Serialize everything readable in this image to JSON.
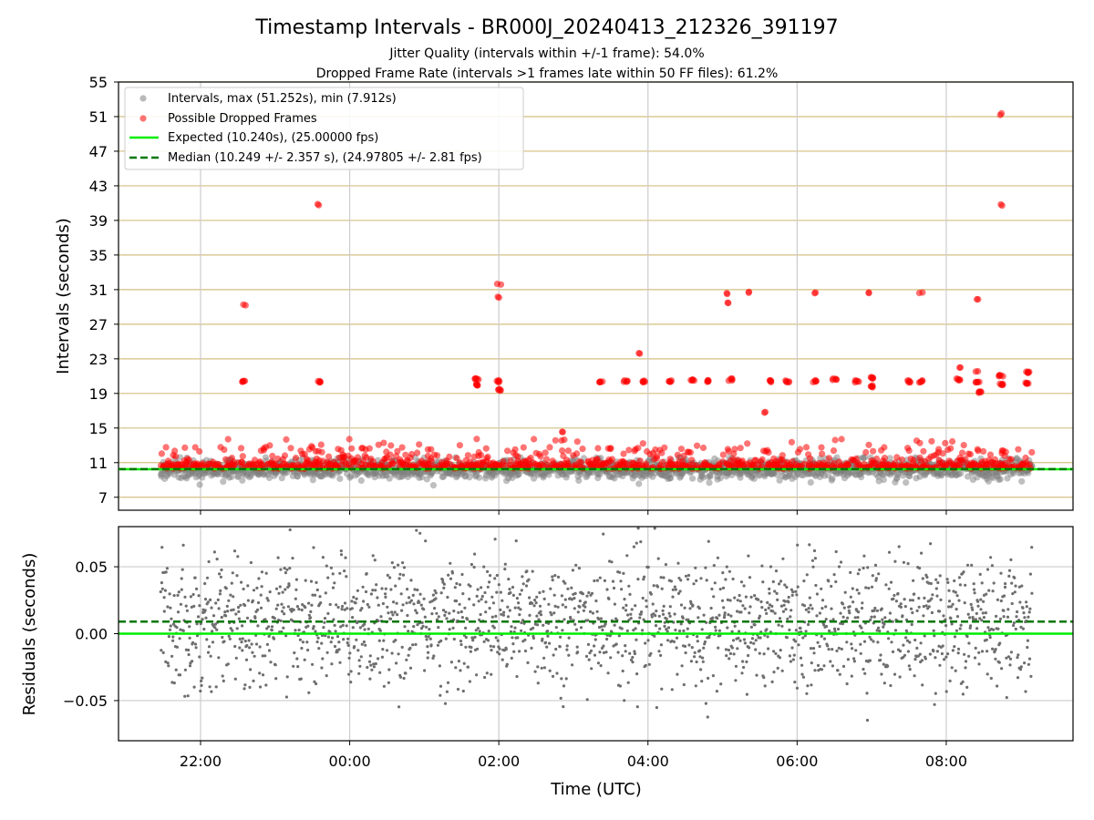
{
  "chart_data": [
    {
      "type": "scatter",
      "title": "Timestamp Intervals - BR000J_20240413_212326_391197",
      "subtitle_1": "Jitter Quality (intervals within +/-1 frame): 54.0%",
      "subtitle_2": "Dropped Frame Rate (intervals >1 frames late within 50 FF files): 61.2%",
      "ylabel": "Intervals (seconds)",
      "xlabel": "",
      "x_range": [
        "20:54",
        "09:42"
      ],
      "ylim": [
        5.5,
        55
      ],
      "y_ticks": [
        7,
        11,
        15,
        19,
        23,
        27,
        31,
        35,
        39,
        43,
        47,
        51,
        55
      ],
      "x_ticks": [
        "22:00",
        "00:00",
        "02:00",
        "04:00",
        "06:00",
        "08:00"
      ],
      "grid": "vertical lines and horizontal y-tick lines",
      "legend_position": "top-left",
      "legend": [
        "Intervals, max (51.252s), min (7.912s)",
        "Possible Dropped Frames",
        "Expected (10.240s), (25.00000 fps)",
        "Median (10.249 +/- 2.357 s), (24.97805 +/- 2.81 fps)"
      ],
      "colors": {
        "intervals": "#808080",
        "dropped": "#ff0000",
        "expected": "#00ee00",
        "median": "#007700",
        "hgrid": "#d4bf80",
        "vgrid": "#cccccc"
      },
      "expected_interval": 10.24,
      "median_interval": 10.249,
      "time_range": [
        "21:28",
        "09:09"
      ],
      "bulk_interval_range": [
        8.0,
        12.8
      ],
      "dropped_cluster_points": [
        {
          "x": "22:35",
          "y": 29.3
        },
        {
          "x": "22:35",
          "y": 20.4
        },
        {
          "x": "23:35",
          "y": 40.8
        },
        {
          "x": "23:35",
          "y": 20.3
        },
        {
          "x": "01:42",
          "y": 20.7
        },
        {
          "x": "01:42",
          "y": 20.0
        },
        {
          "x": "02:00",
          "y": 31.6
        },
        {
          "x": "02:00",
          "y": 30.1
        },
        {
          "x": "02:00",
          "y": 20.4
        },
        {
          "x": "02:00",
          "y": 19.4
        },
        {
          "x": "02:52",
          "y": 14.6
        },
        {
          "x": "03:22",
          "y": 20.4
        },
        {
          "x": "03:42",
          "y": 20.4
        },
        {
          "x": "03:54",
          "y": 23.7
        },
        {
          "x": "03:57",
          "y": 20.4
        },
        {
          "x": "04:18",
          "y": 20.4
        },
        {
          "x": "04:36",
          "y": 20.6
        },
        {
          "x": "04:48",
          "y": 20.4
        },
        {
          "x": "05:05",
          "y": 30.5
        },
        {
          "x": "05:05",
          "y": 29.5
        },
        {
          "x": "05:06",
          "y": 20.6
        },
        {
          "x": "05:22",
          "y": 30.7
        },
        {
          "x": "05:33",
          "y": 16.8
        },
        {
          "x": "05:38",
          "y": 20.4
        },
        {
          "x": "05:52",
          "y": 20.4
        },
        {
          "x": "06:14",
          "y": 30.7
        },
        {
          "x": "06:14",
          "y": 20.4
        },
        {
          "x": "06:30",
          "y": 20.6
        },
        {
          "x": "06:48",
          "y": 20.4
        },
        {
          "x": "06:58",
          "y": 30.6
        },
        {
          "x": "07:00",
          "y": 20.8
        },
        {
          "x": "07:00",
          "y": 19.8
        },
        {
          "x": "07:30",
          "y": 20.4
        },
        {
          "x": "07:40",
          "y": 30.7
        },
        {
          "x": "07:40",
          "y": 20.4
        },
        {
          "x": "08:10",
          "y": 22.0
        },
        {
          "x": "08:10",
          "y": 20.6
        },
        {
          "x": "08:25",
          "y": 29.8
        },
        {
          "x": "08:25",
          "y": 21.5
        },
        {
          "x": "08:25",
          "y": 20.4
        },
        {
          "x": "08:27",
          "y": 19.1
        },
        {
          "x": "08:44",
          "y": 51.25
        },
        {
          "x": "08:44",
          "y": 40.8
        },
        {
          "x": "08:44",
          "y": 21.0
        },
        {
          "x": "08:44",
          "y": 20.0
        },
        {
          "x": "08:47",
          "y": 12.3
        },
        {
          "x": "09:05",
          "y": 21.4
        },
        {
          "x": "09:05",
          "y": 20.2
        }
      ]
    },
    {
      "type": "scatter",
      "title": "",
      "ylabel": "Residuals (seconds)",
      "xlabel": "Time (UTC)",
      "x_range": [
        "20:54",
        "09:42"
      ],
      "ylim": [
        -0.08,
        0.08
      ],
      "y_ticks": [
        -0.05,
        0.0,
        0.05
      ],
      "y_tick_labels": [
        "−0.05",
        "0.00",
        "0.05"
      ],
      "x_ticks": [
        "22:00",
        "00:00",
        "02:00",
        "04:00",
        "06:00",
        "08:00"
      ],
      "grid": "both",
      "expected_residual": 0.0,
      "median_residual": 0.009,
      "residual_spread": 0.03,
      "colors": {
        "points": "#6e6e6e",
        "expected": "#00ee00",
        "median": "#007700",
        "grid": "#cccccc"
      }
    }
  ]
}
